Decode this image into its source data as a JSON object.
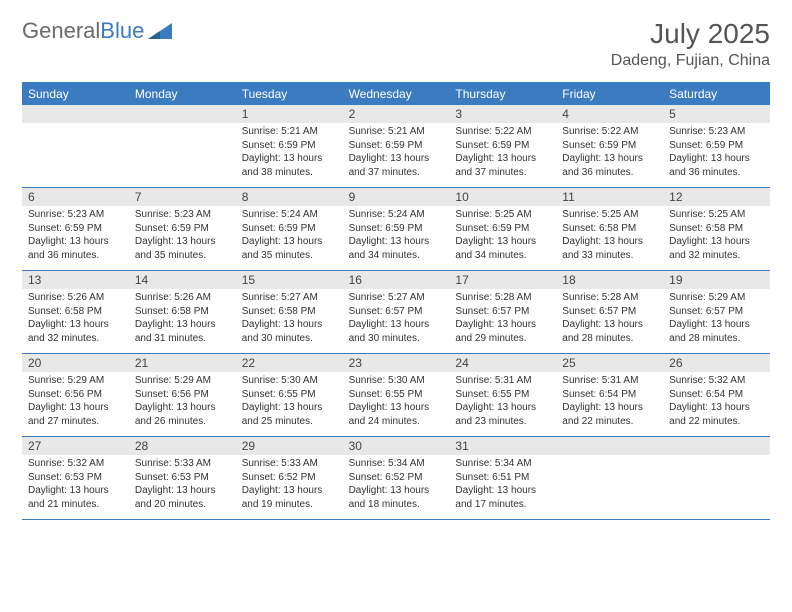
{
  "brand": {
    "part1": "General",
    "part2": "Blue"
  },
  "title": "July 2025",
  "location": "Dadeng, Fujian, China",
  "colors": {
    "header_bg": "#3b7bbf",
    "daynum_bg": "#e8e8e8",
    "border": "#3b7bbf",
    "text": "#333333",
    "title_text": "#555555"
  },
  "dayNames": [
    "Sunday",
    "Monday",
    "Tuesday",
    "Wednesday",
    "Thursday",
    "Friday",
    "Saturday"
  ],
  "weeks": [
    [
      null,
      null,
      {
        "n": "1",
        "sr": "5:21 AM",
        "ss": "6:59 PM",
        "dl": "13 hours and 38 minutes."
      },
      {
        "n": "2",
        "sr": "5:21 AM",
        "ss": "6:59 PM",
        "dl": "13 hours and 37 minutes."
      },
      {
        "n": "3",
        "sr": "5:22 AM",
        "ss": "6:59 PM",
        "dl": "13 hours and 37 minutes."
      },
      {
        "n": "4",
        "sr": "5:22 AM",
        "ss": "6:59 PM",
        "dl": "13 hours and 36 minutes."
      },
      {
        "n": "5",
        "sr": "5:23 AM",
        "ss": "6:59 PM",
        "dl": "13 hours and 36 minutes."
      }
    ],
    [
      {
        "n": "6",
        "sr": "5:23 AM",
        "ss": "6:59 PM",
        "dl": "13 hours and 36 minutes."
      },
      {
        "n": "7",
        "sr": "5:23 AM",
        "ss": "6:59 PM",
        "dl": "13 hours and 35 minutes."
      },
      {
        "n": "8",
        "sr": "5:24 AM",
        "ss": "6:59 PM",
        "dl": "13 hours and 35 minutes."
      },
      {
        "n": "9",
        "sr": "5:24 AM",
        "ss": "6:59 PM",
        "dl": "13 hours and 34 minutes."
      },
      {
        "n": "10",
        "sr": "5:25 AM",
        "ss": "6:59 PM",
        "dl": "13 hours and 34 minutes."
      },
      {
        "n": "11",
        "sr": "5:25 AM",
        "ss": "6:58 PM",
        "dl": "13 hours and 33 minutes."
      },
      {
        "n": "12",
        "sr": "5:25 AM",
        "ss": "6:58 PM",
        "dl": "13 hours and 32 minutes."
      }
    ],
    [
      {
        "n": "13",
        "sr": "5:26 AM",
        "ss": "6:58 PM",
        "dl": "13 hours and 32 minutes."
      },
      {
        "n": "14",
        "sr": "5:26 AM",
        "ss": "6:58 PM",
        "dl": "13 hours and 31 minutes."
      },
      {
        "n": "15",
        "sr": "5:27 AM",
        "ss": "6:58 PM",
        "dl": "13 hours and 30 minutes."
      },
      {
        "n": "16",
        "sr": "5:27 AM",
        "ss": "6:57 PM",
        "dl": "13 hours and 30 minutes."
      },
      {
        "n": "17",
        "sr": "5:28 AM",
        "ss": "6:57 PM",
        "dl": "13 hours and 29 minutes."
      },
      {
        "n": "18",
        "sr": "5:28 AM",
        "ss": "6:57 PM",
        "dl": "13 hours and 28 minutes."
      },
      {
        "n": "19",
        "sr": "5:29 AM",
        "ss": "6:57 PM",
        "dl": "13 hours and 28 minutes."
      }
    ],
    [
      {
        "n": "20",
        "sr": "5:29 AM",
        "ss": "6:56 PM",
        "dl": "13 hours and 27 minutes."
      },
      {
        "n": "21",
        "sr": "5:29 AM",
        "ss": "6:56 PM",
        "dl": "13 hours and 26 minutes."
      },
      {
        "n": "22",
        "sr": "5:30 AM",
        "ss": "6:55 PM",
        "dl": "13 hours and 25 minutes."
      },
      {
        "n": "23",
        "sr": "5:30 AM",
        "ss": "6:55 PM",
        "dl": "13 hours and 24 minutes."
      },
      {
        "n": "24",
        "sr": "5:31 AM",
        "ss": "6:55 PM",
        "dl": "13 hours and 23 minutes."
      },
      {
        "n": "25",
        "sr": "5:31 AM",
        "ss": "6:54 PM",
        "dl": "13 hours and 22 minutes."
      },
      {
        "n": "26",
        "sr": "5:32 AM",
        "ss": "6:54 PM",
        "dl": "13 hours and 22 minutes."
      }
    ],
    [
      {
        "n": "27",
        "sr": "5:32 AM",
        "ss": "6:53 PM",
        "dl": "13 hours and 21 minutes."
      },
      {
        "n": "28",
        "sr": "5:33 AM",
        "ss": "6:53 PM",
        "dl": "13 hours and 20 minutes."
      },
      {
        "n": "29",
        "sr": "5:33 AM",
        "ss": "6:52 PM",
        "dl": "13 hours and 19 minutes."
      },
      {
        "n": "30",
        "sr": "5:34 AM",
        "ss": "6:52 PM",
        "dl": "13 hours and 18 minutes."
      },
      {
        "n": "31",
        "sr": "5:34 AM",
        "ss": "6:51 PM",
        "dl": "13 hours and 17 minutes."
      },
      null,
      null
    ]
  ],
  "labels": {
    "sunrise": "Sunrise:",
    "sunset": "Sunset:",
    "daylight": "Daylight:"
  }
}
